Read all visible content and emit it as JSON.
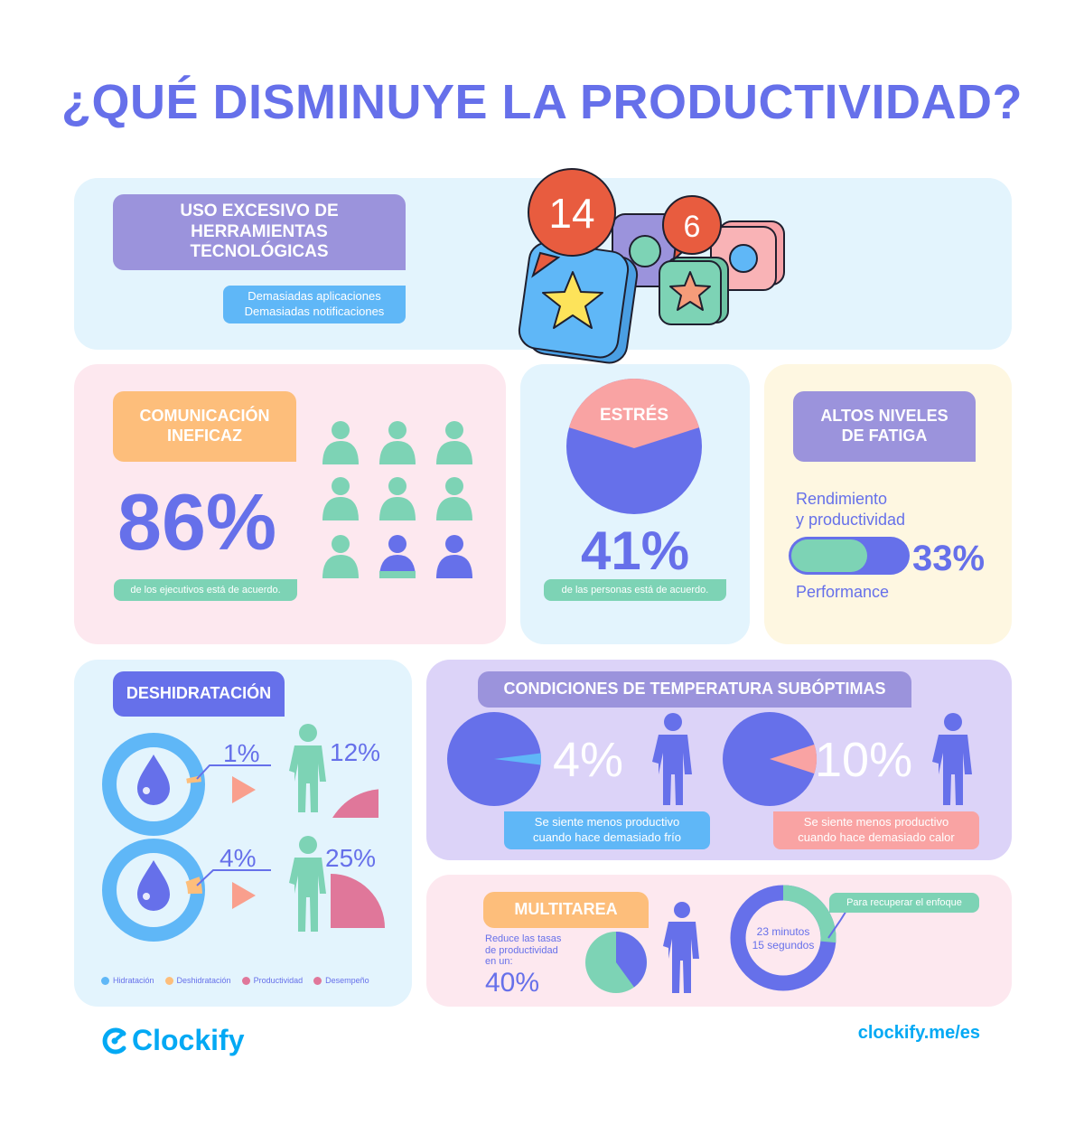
{
  "title": "¿QUÉ DISMINUYE LA PRODUCTIVIDAD?",
  "colors": {
    "primary": "#6670ea",
    "mint": "#7dd3b5",
    "pink": "#f9a3a3",
    "orange": "#fdbe7b",
    "lavender": "#9b93dc",
    "sky": "#5fb7f7",
    "magenta": "#e0779a"
  },
  "tech": {
    "tag": "USO EXCESIVO DE HERRAMIENTAS TECNOLÓGICAS",
    "line1": "Demasiadas aplicaciones",
    "line2": "Demasiadas notificaciones",
    "badge_large": "14",
    "badge_small": "6"
  },
  "comm": {
    "tag_line1": "COMUNICACIÓN",
    "tag_line2": "INEFICAZ",
    "value": "86%",
    "caption": "de los ejecutivos está de acuerdo."
  },
  "stress": {
    "tag": "ESTRÉS",
    "value": "41%",
    "caption": "de las personas está de acuerdo."
  },
  "fatigue": {
    "tag_line1": "ALTOS NIVELES",
    "tag_line2": "DE FATIGA",
    "sub_line1": "Rendimiento",
    "sub_line2": "y productividad",
    "value": "33%",
    "bar_level": 0.33,
    "footer": "Performance"
  },
  "dehydration": {
    "tag": "DESHIDRATACIÓN",
    "row1": {
      "hydration_loss": "1%",
      "productivity_loss": "12%"
    },
    "row2": {
      "hydration_loss": "4%",
      "productivity_loss": "25%"
    },
    "legend": [
      "Hidratación",
      "Deshidratación",
      "Productividad",
      "Desempeño"
    ]
  },
  "temperature": {
    "tag": "CONDICIONES DE TEMPERATURA SUBÓPTIMAS",
    "cold_value": "4%",
    "cold_line1": "Se siente menos productivo",
    "cold_line2": "cuando hace demasiado frío",
    "hot_value": "10%",
    "hot_line1": "Se siente menos productivo",
    "hot_line2": "cuando hace demasiado calor"
  },
  "multitask": {
    "tag": "MULTITAREA",
    "desc_line1": "Reduce las tasas",
    "desc_line2": "de productividad",
    "desc_line3": "en un:",
    "value": "40%",
    "focus_label": "Para recuperar el enfoque",
    "time_line1": "23 minutos",
    "time_line2": "15 segundos"
  },
  "footer": {
    "brand": "Clockify",
    "url": "clockify.me/es"
  },
  "chart_data": [
    {
      "type": "pie",
      "categories": [
        "ESTRÉS"
      ],
      "values": [
        41
      ]
    },
    {
      "type": "bar",
      "categories": [
        "Rendimiento y productividad"
      ],
      "values": [
        33
      ]
    },
    {
      "type": "bar",
      "categories": [
        "1%",
        "4%"
      ],
      "values": [
        12,
        25
      ]
    },
    {
      "type": "pie",
      "categories": [
        "Se siente menos productivo cuando hace demasiado frío"
      ],
      "values": [
        4
      ]
    },
    {
      "type": "pie",
      "categories": [
        "Se siente menos productivo cuando hace demasiado calor"
      ],
      "values": [
        10
      ]
    },
    {
      "type": "pie",
      "categories": [
        "MULTITAREA"
      ],
      "values": [
        40
      ]
    }
  ]
}
